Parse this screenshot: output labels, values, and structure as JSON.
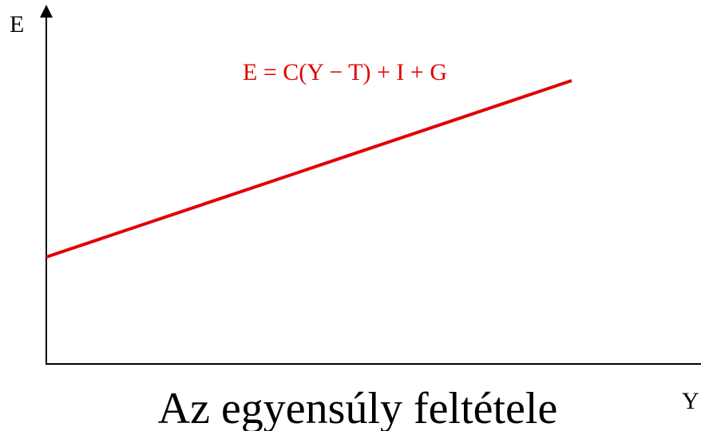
{
  "axes": {
    "y_label": "E",
    "x_label": "Y"
  },
  "line": {
    "label": "E = C(Y − T) + I + G"
  },
  "caption": "Az egyensúly feltétele"
}
